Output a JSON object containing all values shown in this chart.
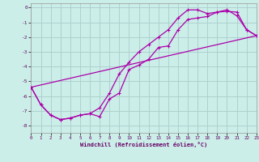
{
  "xlabel": "Windchill (Refroidissement éolien,°C)",
  "xlim": [
    0,
    23
  ],
  "ylim": [
    -8.5,
    0.3
  ],
  "yticks": [
    0,
    -1,
    -2,
    -3,
    -4,
    -5,
    -6,
    -7,
    -8
  ],
  "xticks": [
    0,
    1,
    2,
    3,
    4,
    5,
    6,
    7,
    8,
    9,
    10,
    11,
    12,
    13,
    14,
    15,
    16,
    17,
    18,
    19,
    20,
    21,
    22,
    23
  ],
  "bg_color": "#cceee8",
  "grid_color": "#aacccc",
  "line_color": "#aa00aa",
  "line1_x": [
    0,
    1,
    2,
    3,
    4,
    5,
    6,
    7,
    8,
    9,
    10,
    11,
    12,
    13,
    14,
    15,
    16,
    17,
    18,
    19,
    20,
    21,
    22,
    23
  ],
  "line1_y": [
    -5.4,
    -6.6,
    -7.3,
    -7.6,
    -7.5,
    -7.3,
    -7.2,
    -6.8,
    -5.8,
    -4.5,
    -3.7,
    -3.0,
    -2.5,
    -2.0,
    -1.5,
    -0.7,
    -0.15,
    -0.15,
    -0.4,
    -0.3,
    -0.15,
    -0.55,
    -1.5,
    -1.9
  ],
  "line2_x": [
    0,
    1,
    2,
    3,
    4,
    5,
    6,
    7,
    8,
    9,
    10,
    11,
    12,
    13,
    14,
    15,
    16,
    17,
    18,
    19,
    20,
    21,
    22,
    23
  ],
  "line2_y": [
    -5.4,
    -6.6,
    -7.3,
    -7.6,
    -7.5,
    -7.3,
    -7.2,
    -7.4,
    -6.2,
    -5.8,
    -4.2,
    -3.9,
    -3.5,
    -2.7,
    -2.6,
    -1.5,
    -0.8,
    -0.7,
    -0.6,
    -0.3,
    -0.25,
    -0.3,
    -1.5,
    -1.9
  ],
  "line3_x": [
    0,
    23
  ],
  "line3_y": [
    -5.4,
    -1.9
  ]
}
